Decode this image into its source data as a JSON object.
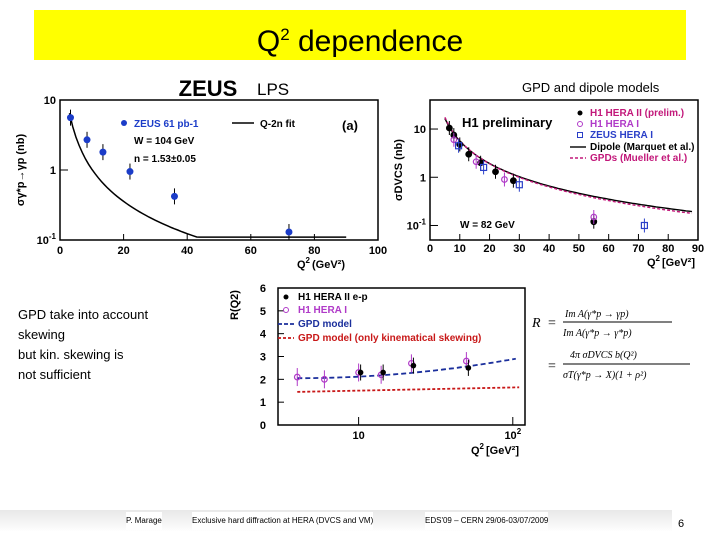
{
  "slide": {
    "title_main": "Q",
    "title_sup": "2",
    "title_rest": " dependence",
    "label_lps": "LPS",
    "label_gpd_models": "GPD and dipole models",
    "note_lines": [
      "GPD take into account",
      "skewing",
      "but kin. skewing is",
      "not sufficient"
    ],
    "footer_author": "P. Marage",
    "footer_talk": "Exclusive hard diffraction at HERA (DVCS and VM)",
    "footer_conf": "EDS'09 – CERN 29/06-03/07/2009",
    "page_number": "6",
    "formula_text": "R = Im A(γ*p→γp) / Im A(γ*p→γ*p) = 4 σDVCS b(Q²) / σT(γ*p → X) (1 + ρ²)"
  },
  "chart_data": [
    {
      "type": "scatter",
      "title": "ZEUS",
      "panel_label": "(a)",
      "ylabel": "σγ*p→γp (nb)",
      "xlabel": "Q2 (GeV2)",
      "xlim": [
        0,
        100
      ],
      "ylim": [
        0.1,
        10
      ],
      "xticks": [
        "0",
        "20",
        "40",
        "60",
        "80",
        "100"
      ],
      "yticks": [
        "10",
        "1",
        "10-1"
      ],
      "legend": [
        "ZEUS 61 pb-1",
        "Q-2n fit",
        "W = 104 GeV",
        "n = 1.53±0.05"
      ],
      "series": [
        {
          "name": "ZEUS 61 pb-1",
          "x": [
            3.3,
            8.5,
            13.5,
            22,
            36,
            72
          ],
          "y": [
            5.6,
            2.7,
            1.8,
            0.95,
            0.42,
            0.13
          ]
        }
      ],
      "fit": {
        "name": "Q-2n fit",
        "n": 1.53
      }
    },
    {
      "type": "scatter",
      "title": "H1 preliminary",
      "ylabel": "σDVCS (nb)",
      "xlabel": "Q2 [GeV2]",
      "xlim": [
        0,
        90
      ],
      "ylim": [
        0.05,
        40
      ],
      "xticks": [
        "0",
        "10",
        "20",
        "30",
        "40",
        "50",
        "60",
        "70",
        "80",
        "90"
      ],
      "yticks": [
        "10",
        "1",
        "10-1"
      ],
      "annotation": "W = 82 GeV",
      "legend": [
        "H1 HERA II (prelim.)",
        "H1 HERA I",
        "ZEUS HERA I",
        "Dipole (Marquet et al.)",
        "GPDs (Mueller et al.)"
      ],
      "series": [
        {
          "name": "H1 HERA II (prelim.)",
          "x": [
            6.5,
            8,
            10,
            13,
            17,
            22,
            28,
            55
          ],
          "y": [
            10.5,
            7.5,
            4.8,
            3.0,
            2.0,
            1.3,
            0.85,
            0.12
          ]
        },
        {
          "name": "H1 HERA I",
          "x": [
            8,
            15.5,
            25,
            55
          ],
          "y": [
            6.0,
            2.1,
            0.9,
            0.15
          ]
        },
        {
          "name": "ZEUS HERA I",
          "x": [
            9.6,
            18,
            30,
            72
          ],
          "y": [
            4.5,
            1.6,
            0.7,
            0.1
          ]
        }
      ],
      "curves": [
        "Dipole (Marquet et al.)",
        "GPDs (Mueller et al.)"
      ]
    },
    {
      "type": "scatter",
      "ylabel": "R(Q2)",
      "xlabel": "Q2 [GeV2]",
      "xscale": "log",
      "xlim": [
        3,
        120
      ],
      "ylim": [
        0,
        6
      ],
      "xticks": [
        "10",
        "102"
      ],
      "yticks": [
        "0",
        "1",
        "2",
        "3",
        "4",
        "5",
        "6"
      ],
      "legend": [
        "H1 HERA II e-p",
        "H1 HERA I",
        "GPD model",
        "GPD model (only kinematical skewing)"
      ],
      "series": [
        {
          "name": "H1 HERA II e-p",
          "x": [
            10,
            14,
            22,
            50
          ],
          "y": [
            2.3,
            2.3,
            2.6,
            2.5
          ]
        },
        {
          "name": "H1 HERA I",
          "x": [
            4,
            6,
            10,
            14,
            22,
            50
          ],
          "y": [
            2.1,
            2.0,
            2.3,
            2.2,
            2.7,
            2.8
          ]
        }
      ],
      "curves": [
        "GPD model",
        "GPD model (only kinematical skewing)"
      ]
    }
  ]
}
